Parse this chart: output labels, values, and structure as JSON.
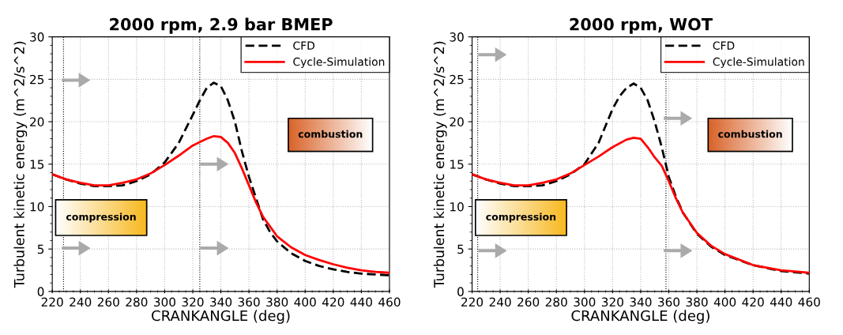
{
  "chart_data": [
    {
      "type": "line",
      "title": "2000 rpm, 2.9 bar BMEP",
      "xlabel": "CRANKANGLE (deg)",
      "ylabel": "Turbulent kinetic energy (m^2/s^2)",
      "xlim": [
        220,
        460
      ],
      "xticks": [
        220,
        240,
        260,
        280,
        300,
        320,
        340,
        360,
        380,
        400,
        420,
        440,
        460
      ],
      "ylim": [
        0,
        30
      ],
      "yticks": [
        0,
        5,
        10,
        15,
        20,
        25,
        30
      ],
      "grid": true,
      "legend": "top right",
      "series": [
        {
          "name": "CFD",
          "color": "#000000",
          "line_style": "dashed",
          "x": [
            220,
            230,
            240,
            250,
            260,
            270,
            280,
            290,
            300,
            310,
            320,
            325,
            330,
            335,
            340,
            345,
            350,
            355,
            360,
            365,
            370,
            375,
            380,
            390,
            400,
            410,
            420,
            430,
            440,
            450,
            460
          ],
          "values": [
            13.8,
            13.2,
            12.7,
            12.4,
            12.4,
            12.5,
            13.0,
            13.8,
            15.2,
            17.5,
            20.8,
            22.5,
            24.0,
            24.6,
            24.2,
            22.5,
            20.0,
            16.5,
            13.5,
            11.0,
            8.5,
            7.0,
            5.9,
            4.5,
            3.6,
            3.0,
            2.6,
            2.3,
            2.1,
            2.0,
            1.9
          ]
        },
        {
          "name": "Cycle-Simulation",
          "color": "#ff0000",
          "line_style": "solid",
          "x": [
            220,
            230,
            240,
            250,
            260,
            270,
            280,
            290,
            300,
            310,
            320,
            330,
            335,
            340,
            345,
            350,
            355,
            360,
            365,
            370,
            380,
            390,
            400,
            410,
            420,
            430,
            440,
            450,
            460
          ],
          "values": [
            13.8,
            13.2,
            12.8,
            12.5,
            12.5,
            12.8,
            13.2,
            13.9,
            14.9,
            16.0,
            17.2,
            18.0,
            18.3,
            18.2,
            17.5,
            16.3,
            14.5,
            12.5,
            10.5,
            8.8,
            6.5,
            5.2,
            4.3,
            3.7,
            3.2,
            2.8,
            2.5,
            2.3,
            2.2
          ]
        }
      ],
      "ref_lines": [
        {
          "axis": "x",
          "value": 228,
          "color": "#000000",
          "line_style": "dotted"
        },
        {
          "axis": "x",
          "value": 325,
          "color": "#000000",
          "line_style": "dotted"
        }
      ],
      "annotations": [
        "compression",
        "combustion"
      ]
    },
    {
      "type": "line",
      "title": "2000 rpm, WOT",
      "xlabel": "CRANKANGLE (deg)",
      "ylabel": "Turbulent kinetic energy (m^2/s^2)",
      "xlim": [
        220,
        460
      ],
      "xticks": [
        220,
        240,
        260,
        280,
        300,
        320,
        340,
        360,
        380,
        400,
        420,
        440,
        460
      ],
      "ylim": [
        0,
        30
      ],
      "yticks": [
        0,
        5,
        10,
        15,
        20,
        25,
        30
      ],
      "grid": true,
      "legend": "top right",
      "series": [
        {
          "name": "CFD",
          "color": "#000000",
          "line_style": "dashed",
          "x": [
            220,
            230,
            240,
            250,
            260,
            270,
            280,
            290,
            300,
            310,
            320,
            325,
            330,
            335,
            340,
            345,
            350,
            355,
            360,
            365,
            370,
            380,
            390,
            400,
            420,
            440,
            460
          ],
          "values": [
            13.8,
            13.2,
            12.7,
            12.4,
            12.4,
            12.5,
            13.0,
            13.8,
            15.0,
            17.5,
            21.5,
            23.0,
            24.0,
            24.5,
            24.0,
            22.5,
            20.0,
            17.0,
            13.5,
            11.2,
            9.3,
            6.8,
            5.3,
            4.3,
            3.1,
            2.4,
            2.1
          ]
        },
        {
          "name": "Cycle-Simulation",
          "color": "#ff0000",
          "line_style": "solid",
          "x": [
            220,
            230,
            240,
            250,
            260,
            270,
            280,
            290,
            300,
            310,
            320,
            330,
            335,
            340,
            345,
            350,
            355,
            360,
            365,
            370,
            380,
            390,
            400,
            420,
            440,
            460
          ],
          "values": [
            13.8,
            13.2,
            12.8,
            12.5,
            12.5,
            12.8,
            13.2,
            13.9,
            14.9,
            15.9,
            17.0,
            17.9,
            18.1,
            18.0,
            17.0,
            15.8,
            14.8,
            13.0,
            11.0,
            9.3,
            6.9,
            5.4,
            4.4,
            3.1,
            2.5,
            2.2
          ]
        }
      ],
      "ref_lines": [
        {
          "axis": "x",
          "value": 224,
          "color": "#000000",
          "line_style": "dotted"
        },
        {
          "axis": "x",
          "value": 358,
          "color": "#000000",
          "line_style": "dotted"
        }
      ],
      "annotations": [
        "compression",
        "combustion"
      ]
    }
  ]
}
